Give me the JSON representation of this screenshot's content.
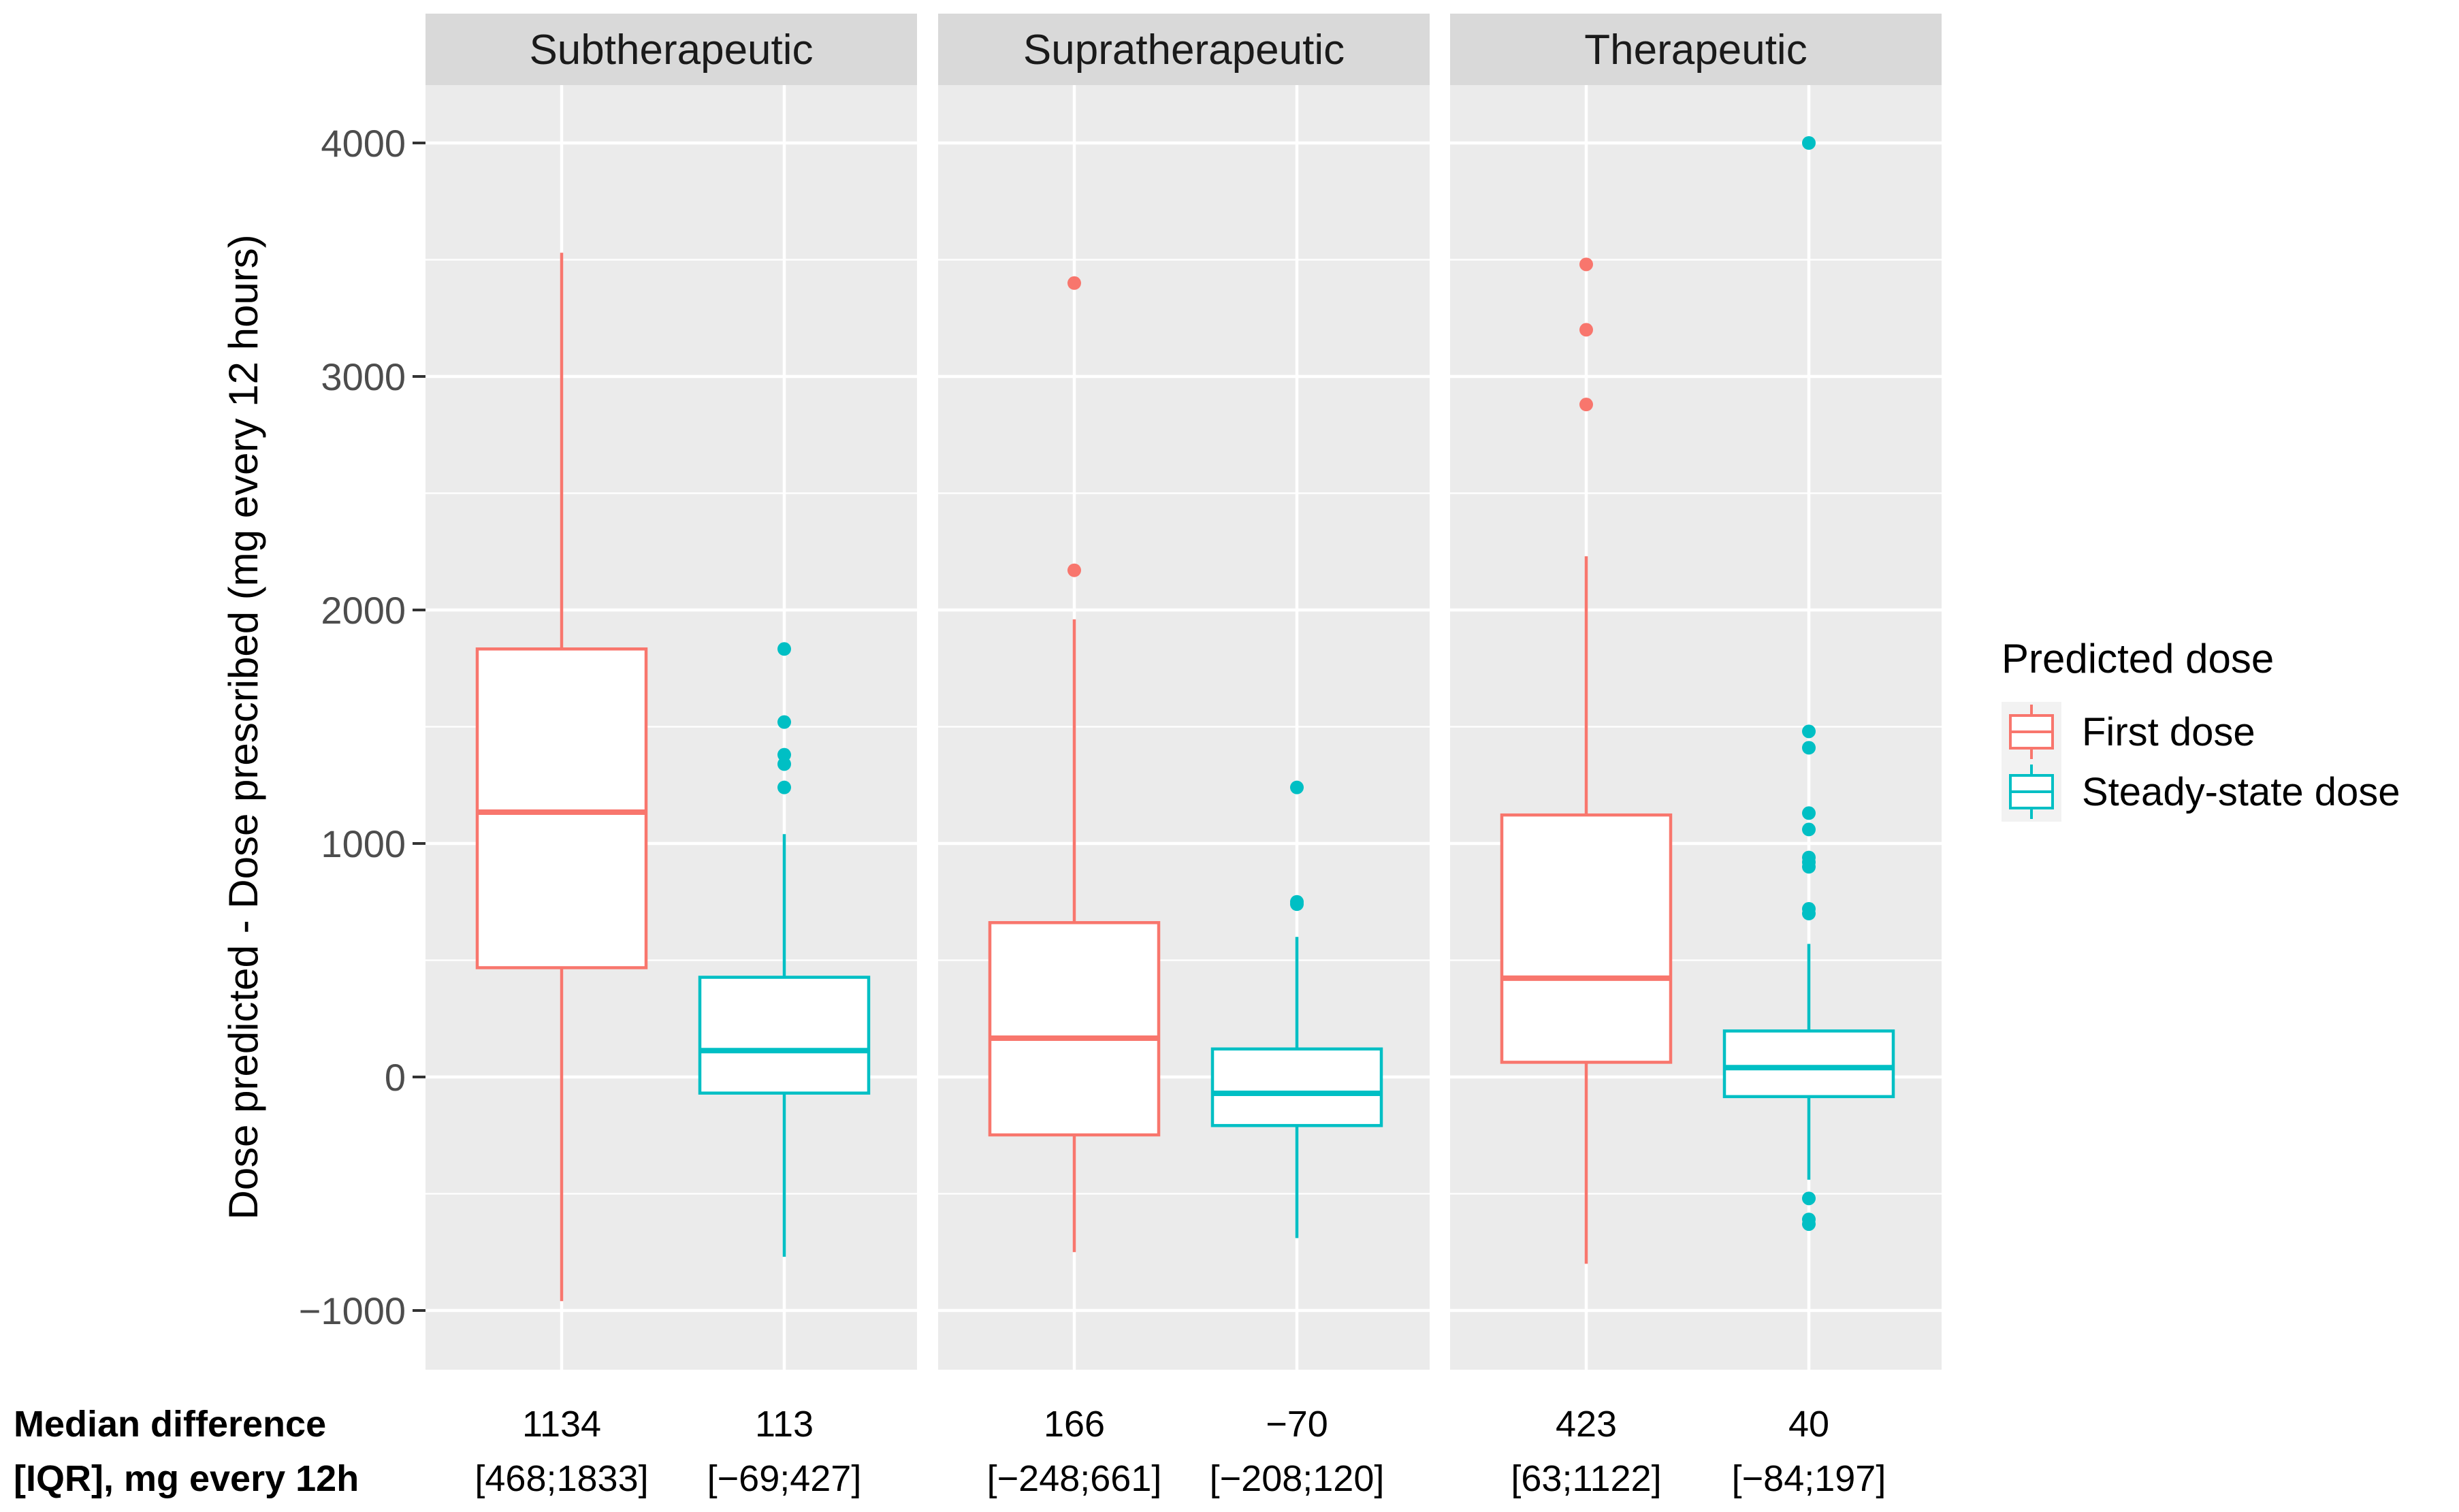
{
  "chart_data": {
    "type": "boxplot",
    "ylabel": "Dose predicted - Dose prescribed (mg every 12 hours)",
    "ylim": [
      -1100,
      4450
    ],
    "yticks": [
      -1000,
      0,
      1000,
      2000,
      3000,
      4000
    ],
    "ytick_labels": [
      "−1000",
      "0",
      "1000",
      "2000",
      "3000",
      "4000"
    ],
    "legend": {
      "title": "Predicted dose",
      "entries": [
        {
          "name": "First dose",
          "color": "#F8766D"
        },
        {
          "name": "Steady-state dose",
          "color": "#00BFC4"
        }
      ]
    },
    "footer_labels": {
      "line1": "Median difference",
      "line2": "[IQR], mg every 12h"
    },
    "panels": [
      {
        "title": "Subtherapeutic",
        "boxes": [
          {
            "series": "First dose",
            "median": 1134,
            "q1": 468,
            "q3": 1833,
            "whisker_low": -960,
            "whisker_high": 3530,
            "outliers": [],
            "median_label": "1134",
            "iqr_label": "[468;1833]"
          },
          {
            "series": "Steady-state dose",
            "median": 113,
            "q1": -69,
            "q3": 427,
            "whisker_low": -770,
            "whisker_high": 1040,
            "outliers": [
              1833,
              1520,
              1380,
              1340,
              1240
            ],
            "median_label": "113",
            "iqr_label": "[−69;427]"
          }
        ]
      },
      {
        "title": "Supratherapeutic",
        "boxes": [
          {
            "series": "First dose",
            "median": 166,
            "q1": -248,
            "q3": 661,
            "whisker_low": -750,
            "whisker_high": 1960,
            "outliers": [
              3400,
              2170
            ],
            "median_label": "166",
            "iqr_label": "[−248;661]"
          },
          {
            "series": "Steady-state dose",
            "median": -70,
            "q1": -208,
            "q3": 120,
            "whisker_low": -690,
            "whisker_high": 600,
            "outliers": [
              1240,
              750,
              740
            ],
            "median_label": "−70",
            "iqr_label": "[−208;120]"
          }
        ]
      },
      {
        "title": "Therapeutic",
        "boxes": [
          {
            "series": "First dose",
            "median": 423,
            "q1": 63,
            "q3": 1122,
            "whisker_low": -800,
            "whisker_high": 2230,
            "outliers": [
              3480,
              3200,
              2880
            ],
            "median_label": "423",
            "iqr_label": "[63;1122]"
          },
          {
            "series": "Steady-state dose",
            "median": 40,
            "q1": -84,
            "q3": 197,
            "whisker_low": -440,
            "whisker_high": 570,
            "outliers": [
              4000,
              1480,
              1410,
              1130,
              1060,
              940,
              920,
              900,
              720,
              700,
              -520,
              -610,
              -630
            ],
            "median_label": "40",
            "iqr_label": "[−84;197]"
          }
        ]
      }
    ]
  }
}
